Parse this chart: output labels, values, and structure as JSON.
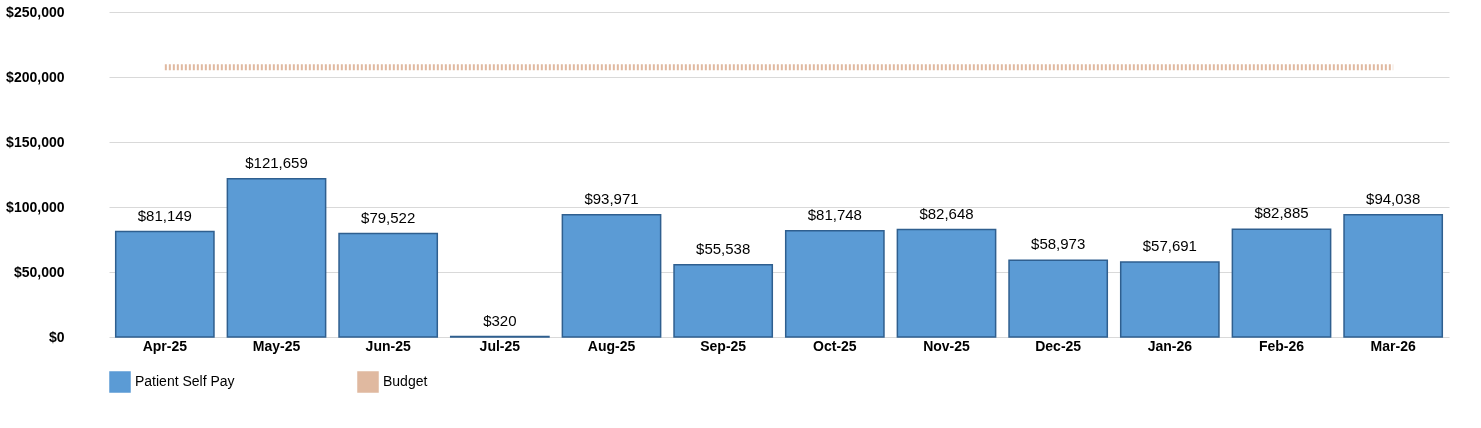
{
  "chart_data": {
    "type": "bar",
    "categories": [
      "Apr-25",
      "May-25",
      "Jun-25",
      "Jul-25",
      "Aug-25",
      "Sep-25",
      "Oct-25",
      "Nov-25",
      "Dec-25",
      "Jan-26",
      "Feb-26",
      "Mar-26"
    ],
    "series": [
      {
        "name": "Patient Self Pay",
        "color": "#5b9bd5",
        "values": [
          81149,
          121659,
          79522,
          320,
          93971,
          55538,
          81748,
          82648,
          58973,
          57691,
          82885,
          94038
        ],
        "value_labels": [
          "$81,149",
          "$121,659",
          "$79,522",
          "$320",
          "$93,971",
          "$55,538",
          "$81,748",
          "$82,648",
          "$58,973",
          "$57,691",
          "$82,885",
          "$94,038"
        ]
      },
      {
        "name": "Budget",
        "type": "line",
        "color": "#e0b9a0",
        "line_style": "dotted",
        "values": [
          207500,
          207500,
          207500,
          207500,
          207500,
          207500,
          207500,
          207500,
          207500,
          207500,
          207500,
          207500
        ]
      }
    ],
    "ylim": [
      0,
      250000
    ],
    "yticks": [
      {
        "value": 0,
        "label": "$0"
      },
      {
        "value": 50000,
        "label": "$50,000"
      },
      {
        "value": 100000,
        "label": "$100,000"
      },
      {
        "value": 150000,
        "label": "$150,000"
      },
      {
        "value": 200000,
        "label": "$200,000"
      },
      {
        "value": 250000,
        "label": "$250,000"
      }
    ],
    "grid": "y",
    "legend": "bottom"
  }
}
